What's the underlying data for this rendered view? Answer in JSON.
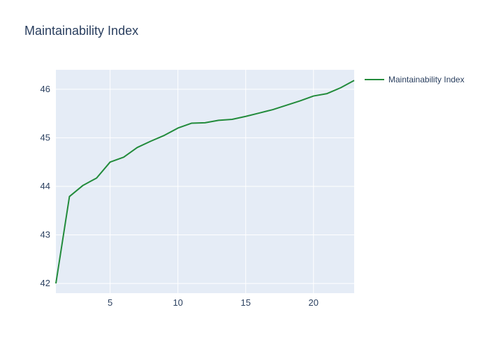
{
  "chart_data": {
    "type": "line",
    "title": "Maintainability Index",
    "xlabel": "",
    "ylabel": "",
    "xlim": [
      1,
      23
    ],
    "ylim": [
      41.8,
      46.4
    ],
    "x_ticks": [
      5,
      10,
      15,
      20
    ],
    "y_ticks": [
      42,
      43,
      44,
      45,
      46
    ],
    "grid": true,
    "legend_position": "top-right",
    "series": [
      {
        "name": "Maintainability Index",
        "color": "#228b3b",
        "x": [
          1,
          2,
          3,
          4,
          5,
          6,
          7,
          8,
          9,
          10,
          11,
          12,
          13,
          14,
          15,
          16,
          17,
          18,
          19,
          20,
          21,
          22,
          23
        ],
        "y": [
          42.0,
          43.79,
          44.02,
          44.17,
          44.5,
          44.6,
          44.8,
          44.93,
          45.05,
          45.2,
          45.3,
          45.31,
          45.36,
          45.38,
          45.44,
          45.51,
          45.58,
          45.67,
          45.76,
          45.86,
          45.91,
          46.03,
          46.18
        ]
      }
    ]
  }
}
